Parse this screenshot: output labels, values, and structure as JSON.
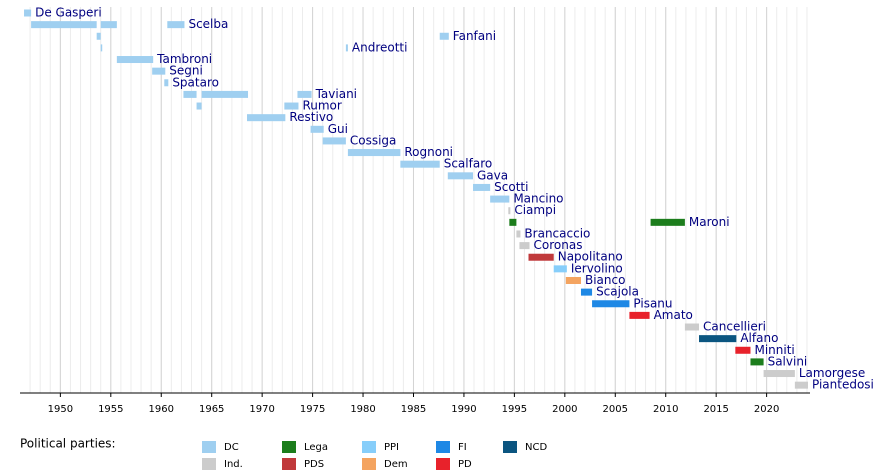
{
  "chart_data": {
    "type": "timeline",
    "xlim": [
      1946,
      2024.3
    ],
    "xticks": [
      1950,
      1955,
      1960,
      1965,
      1970,
      1975,
      1980,
      1985,
      1990,
      1995,
      2000,
      2005,
      2010,
      2015,
      2020
    ],
    "xminor": [
      1947,
      1948,
      1949,
      1950,
      1951,
      1952,
      1953,
      1954,
      1955,
      1956,
      1957,
      1958,
      1959,
      1960,
      1961,
      1962,
      1963,
      1964,
      1965,
      1966,
      1967,
      1968,
      1969,
      1970,
      1971,
      1972,
      1973,
      1974,
      1975,
      1976,
      1977,
      1978,
      1979,
      1980,
      1981,
      1982,
      1983,
      1984,
      1985,
      1986,
      1987,
      1988,
      1989,
      1990,
      1991,
      1992,
      1993,
      1994,
      1995,
      1996,
      1997,
      1998,
      1999,
      2000,
      2001,
      2002,
      2003,
      2004,
      2005,
      2006,
      2007,
      2008,
      2009,
      2010,
      2011,
      2012,
      2013,
      2014,
      2015,
      2016,
      2017,
      2018,
      2019,
      2020,
      2021,
      2022,
      2023,
      2024
    ],
    "grid": true,
    "rows": [
      {
        "name": "De Gasperi",
        "bars": [
          {
            "start": 1946.4,
            "end": 1947.1,
            "color": "#9fcff0"
          }
        ]
      },
      {
        "name": "Scelba",
        "bars": [
          {
            "start": 1947.1,
            "end": 1953.6,
            "color": "#9fcff0"
          },
          {
            "start": 1954.0,
            "end": 1955.6,
            "color": "#9fcff0"
          },
          {
            "start": 1960.6,
            "end": 1962.3,
            "color": "#9fcff0"
          }
        ]
      },
      {
        "name": "Fanfani",
        "bars": [
          {
            "start": 1953.6,
            "end": 1954.0,
            "color": "#9fcff0"
          },
          {
            "start": 1987.6,
            "end": 1988.5,
            "color": "#9fcff0"
          }
        ]
      },
      {
        "name": "Andreotti",
        "bars": [
          {
            "start": 1954.0,
            "end": 1954.1,
            "color": "#9fcff0"
          },
          {
            "start": 1978.3,
            "end": 1978.5,
            "color": "#9fcff0"
          }
        ]
      },
      {
        "name": "Tambroni",
        "bars": [
          {
            "start": 1955.6,
            "end": 1959.2,
            "color": "#9fcff0"
          }
        ]
      },
      {
        "name": "Segni",
        "bars": [
          {
            "start": 1959.1,
            "end": 1960.4,
            "color": "#9fcff0"
          }
        ]
      },
      {
        "name": "Spataro",
        "bars": [
          {
            "start": 1960.3,
            "end": 1960.7,
            "color": "#9fcff0"
          }
        ]
      },
      {
        "name": "Taviani",
        "bars": [
          {
            "start": 1962.2,
            "end": 1963.5,
            "color": "#9fcff0"
          },
          {
            "start": 1964.0,
            "end": 1968.6,
            "color": "#9fcff0"
          },
          {
            "start": 1973.5,
            "end": 1974.9,
            "color": "#9fcff0"
          }
        ]
      },
      {
        "name": "Rumor",
        "bars": [
          {
            "start": 1963.5,
            "end": 1964.0,
            "color": "#9fcff0"
          },
          {
            "start": 1972.2,
            "end": 1973.6,
            "color": "#9fcff0"
          }
        ]
      },
      {
        "name": "Restivo",
        "bars": [
          {
            "start": 1968.5,
            "end": 1972.3,
            "color": "#9fcff0"
          }
        ]
      },
      {
        "name": "Gui",
        "bars": [
          {
            "start": 1974.8,
            "end": 1976.1,
            "color": "#9fcff0"
          }
        ]
      },
      {
        "name": "Cossiga",
        "bars": [
          {
            "start": 1976.0,
            "end": 1978.3,
            "color": "#9fcff0"
          }
        ]
      },
      {
        "name": "Rognoni",
        "bars": [
          {
            "start": 1978.5,
            "end": 1983.7,
            "color": "#9fcff0"
          }
        ]
      },
      {
        "name": "Scalfaro",
        "bars": [
          {
            "start": 1983.7,
            "end": 1987.6,
            "color": "#9fcff0"
          }
        ]
      },
      {
        "name": "Gava",
        "bars": [
          {
            "start": 1988.4,
            "end": 1990.9,
            "color": "#9fcff0"
          }
        ]
      },
      {
        "name": "Scotti",
        "bars": [
          {
            "start": 1990.9,
            "end": 1992.6,
            "color": "#9fcff0"
          }
        ]
      },
      {
        "name": "Mancino",
        "bars": [
          {
            "start": 1992.6,
            "end": 1994.5,
            "color": "#9fcff0"
          }
        ]
      },
      {
        "name": "Ciampi",
        "bars": [
          {
            "start": 1994.4,
            "end": 1994.6,
            "color": "#cccccc"
          }
        ]
      },
      {
        "name": "Maroni",
        "bars": [
          {
            "start": 1994.5,
            "end": 1995.2,
            "color": "#1c7d1c"
          },
          {
            "start": 2008.5,
            "end": 2011.9,
            "color": "#1c7d1c"
          }
        ]
      },
      {
        "name": "Brancaccio",
        "bars": [
          {
            "start": 1995.2,
            "end": 1995.6,
            "color": "#cccccc"
          }
        ]
      },
      {
        "name": "Coronas",
        "bars": [
          {
            "start": 1995.5,
            "end": 1996.5,
            "color": "#cccccc"
          }
        ]
      },
      {
        "name": "Napolitano",
        "bars": [
          {
            "start": 1996.4,
            "end": 1998.9,
            "color": "#c0393b"
          }
        ]
      },
      {
        "name": "Iervolino",
        "bars": [
          {
            "start": 1998.9,
            "end": 2000.2,
            "color": "#87cefa"
          }
        ]
      },
      {
        "name": "Bianco",
        "bars": [
          {
            "start": 2000.1,
            "end": 2001.6,
            "color": "#f4a460"
          }
        ]
      },
      {
        "name": "Scajola",
        "bars": [
          {
            "start": 2001.6,
            "end": 2002.7,
            "color": "#1e88e5"
          }
        ]
      },
      {
        "name": "Pisanu",
        "bars": [
          {
            "start": 2002.7,
            "end": 2006.4,
            "color": "#1e88e5"
          }
        ]
      },
      {
        "name": "Amato",
        "bars": [
          {
            "start": 2006.4,
            "end": 2008.4,
            "color": "#e8222b"
          }
        ]
      },
      {
        "name": "Cancellieri",
        "bars": [
          {
            "start": 2011.9,
            "end": 2013.3,
            "color": "#cccccc"
          }
        ]
      },
      {
        "name": "Alfano",
        "bars": [
          {
            "start": 2013.3,
            "end": 2017.0,
            "color": "#0b5580"
          }
        ]
      },
      {
        "name": "Minniti",
        "bars": [
          {
            "start": 2016.9,
            "end": 2018.4,
            "color": "#e8222b"
          }
        ]
      },
      {
        "name": "Salvini",
        "bars": [
          {
            "start": 2018.4,
            "end": 2019.7,
            "color": "#1c7d1c"
          }
        ]
      },
      {
        "name": "Lamorgese",
        "bars": [
          {
            "start": 2019.7,
            "end": 2022.8,
            "color": "#cccccc"
          }
        ]
      },
      {
        "name": "Piantedosi",
        "bars": [
          {
            "start": 2022.8,
            "end": 2024.1,
            "color": "#cccccc"
          }
        ]
      }
    ],
    "legend": {
      "title": "Political parties:",
      "items": [
        {
          "name": "DC",
          "color": "#9fcff0"
        },
        {
          "name": "Ind.",
          "color": "#cccccc"
        },
        {
          "name": "Lega",
          "color": "#1c7d1c"
        },
        {
          "name": "PDS",
          "color": "#c0393b"
        },
        {
          "name": "PPI",
          "color": "#87cefa"
        },
        {
          "name": "Dem",
          "color": "#f4a460"
        },
        {
          "name": "FI",
          "color": "#1e88e5"
        },
        {
          "name": "PD",
          "color": "#e8222b"
        },
        {
          "name": "NCD",
          "color": "#0b5580"
        }
      ]
    }
  }
}
